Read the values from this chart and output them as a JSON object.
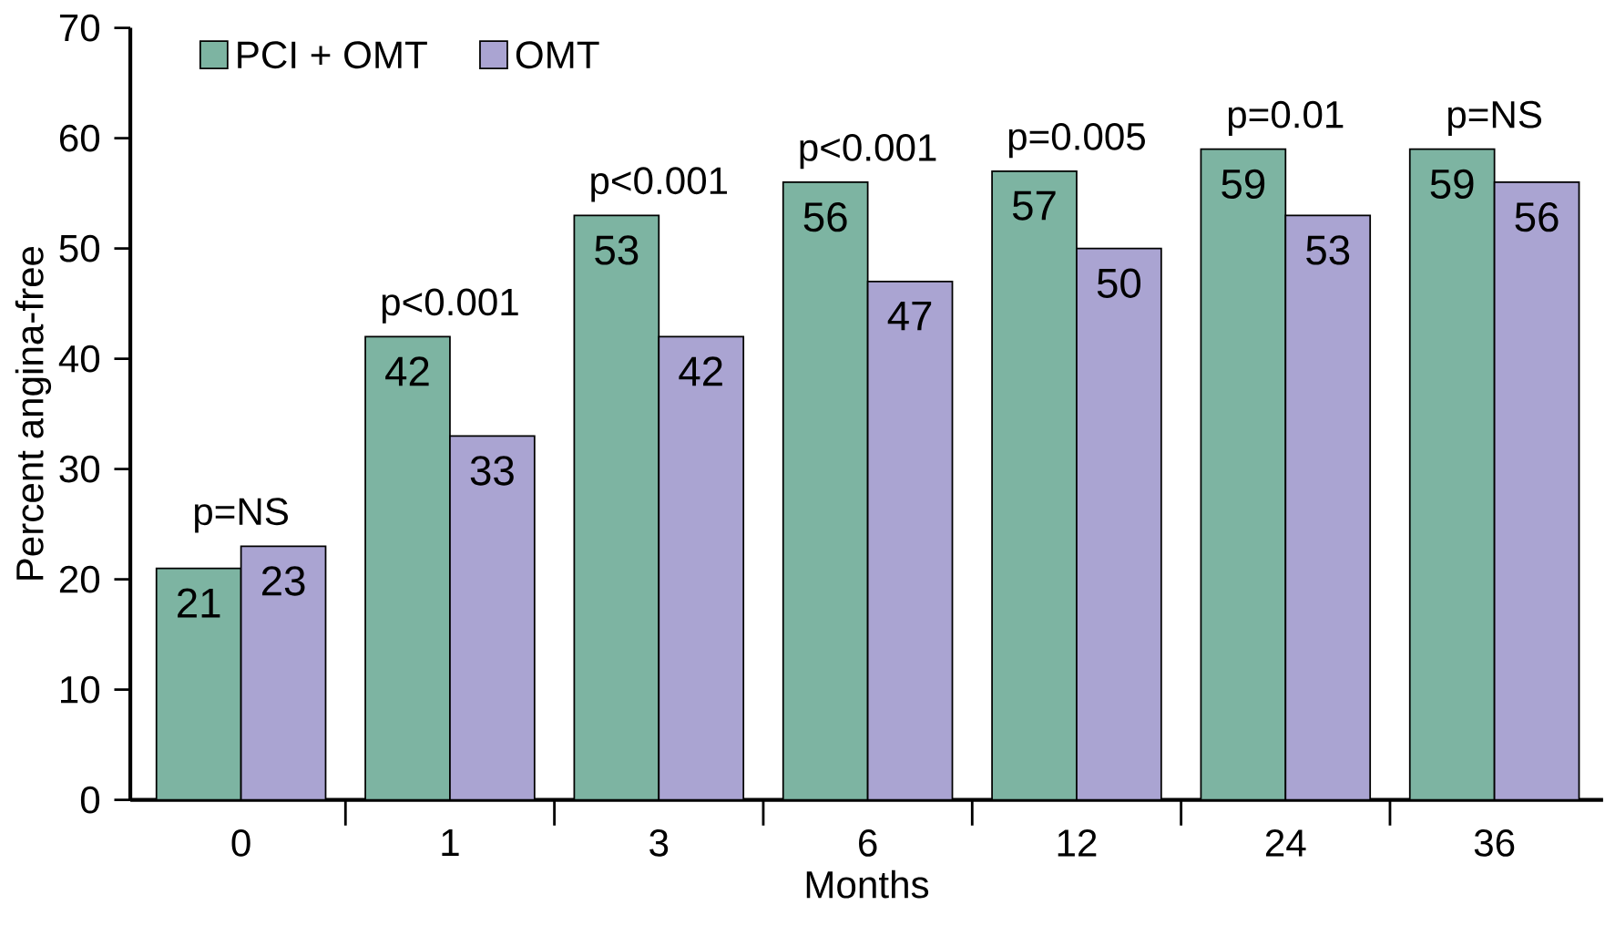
{
  "chart_data": {
    "type": "bar",
    "xlabel": "Months",
    "ylabel": "Percent angina-free",
    "categories": [
      "0",
      "1",
      "3",
      "6",
      "12",
      "24",
      "36"
    ],
    "series": [
      {
        "name": "PCI + OMT",
        "color": "#7db4a2",
        "values": [
          21,
          42,
          53,
          56,
          57,
          59,
          59
        ]
      },
      {
        "name": "OMT",
        "color": "#aaa4d2",
        "values": [
          23,
          33,
          42,
          47,
          50,
          53,
          56
        ]
      }
    ],
    "ylim": [
      0,
      70
    ],
    "yticks": [
      0,
      10,
      20,
      30,
      40,
      50,
      60,
      70
    ],
    "data_labels": true,
    "legend": "top left",
    "grid": false,
    "annotations": [
      "p=NS",
      "p<0.001",
      "p<0.001",
      "p<0.001",
      "p=0.005",
      "p=0.01",
      "p=NS"
    ]
  }
}
